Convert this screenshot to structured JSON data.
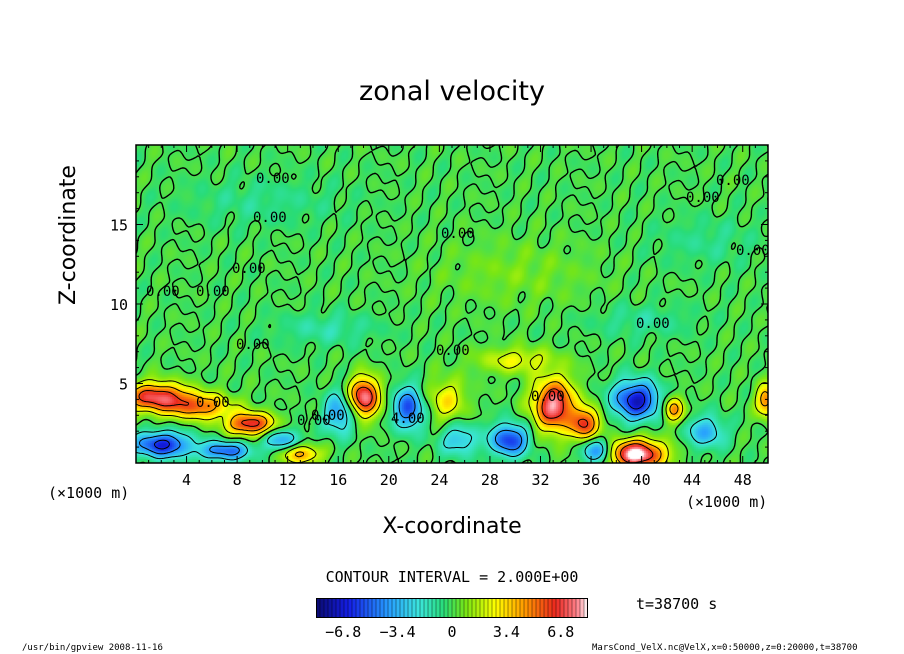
{
  "chart_data": {
    "type": "heatmap",
    "title": "zonal velocity",
    "xlabel": "X-coordinate",
    "ylabel": "Z-coordinate",
    "x_unit": "(×1000 m)",
    "y_unit": "(×1000 m)",
    "xlim": [
      0,
      50
    ],
    "ylim": [
      0,
      20
    ],
    "x_ticks": [
      4,
      8,
      12,
      16,
      20,
      24,
      28,
      32,
      36,
      40,
      44,
      48
    ],
    "y_ticks": [
      5,
      10,
      15
    ],
    "contour_interval_text": "CONTOUR INTERVAL = 2.000E+00",
    "contour_labels": [
      "0.00",
      "0.00",
      "0.00",
      "0.00",
      "0.00",
      "0.00",
      "0.00",
      "0.00",
      "0.00",
      "0.00",
      "0.00",
      "0.00",
      "0.00",
      "4.00",
      "0.00",
      "0.00",
      "0.00",
      "0.00"
    ],
    "colorbar": {
      "min": -8.5,
      "max": 8.5,
      "ticks": [
        "−6.8",
        "−3.4",
        "0",
        "3.4",
        "6.8"
      ],
      "tick_values": [
        -6.8,
        -3.4,
        0,
        3.4,
        6.8
      ]
    },
    "time_label": "t=38700 s",
    "blobs": [
      {
        "x": 1.5,
        "z": 4.2,
        "v": 7.0,
        "sx": 2.5,
        "sz": 0.9
      },
      {
        "x": 5.0,
        "z": 3.6,
        "v": 5.0,
        "sx": 2.5,
        "sz": 0.8
      },
      {
        "x": 9.0,
        "z": 2.5,
        "v": 7.0,
        "sx": 1.8,
        "sz": 0.7
      },
      {
        "x": 13.0,
        "z": 0.6,
        "v": 4.5,
        "sx": 1.5,
        "sz": 0.6
      },
      {
        "x": 18.0,
        "z": 4.2,
        "v": 8.0,
        "sx": 1.2,
        "sz": 1.2
      },
      {
        "x": 24.5,
        "z": 4.0,
        "v": 3.0,
        "sx": 1.5,
        "sz": 1.3
      },
      {
        "x": 33.0,
        "z": 3.7,
        "v": 8.0,
        "sx": 1.6,
        "sz": 1.6
      },
      {
        "x": 35.5,
        "z": 2.5,
        "v": 6.0,
        "sx": 1.2,
        "sz": 1.0
      },
      {
        "x": 39.5,
        "z": 0.6,
        "v": 9.0,
        "sx": 2.2,
        "sz": 0.9
      },
      {
        "x": 42.5,
        "z": 3.4,
        "v": 5.0,
        "sx": 0.8,
        "sz": 0.8
      },
      {
        "x": 49.8,
        "z": 4.0,
        "v": 5.0,
        "sx": 0.8,
        "sz": 1.0
      },
      {
        "x": 2.0,
        "z": 1.2,
        "v": -6.5,
        "sx": 2.2,
        "sz": 0.8
      },
      {
        "x": 7.0,
        "z": 0.8,
        "v": -5.0,
        "sx": 2.0,
        "sz": 0.6
      },
      {
        "x": 11.5,
        "z": 1.5,
        "v": -3.5,
        "sx": 1.5,
        "sz": 0.7
      },
      {
        "x": 16.0,
        "z": 3.2,
        "v": -4.0,
        "sx": 1.2,
        "sz": 1.3
      },
      {
        "x": 21.5,
        "z": 3.5,
        "v": -5.5,
        "sx": 1.2,
        "sz": 1.3
      },
      {
        "x": 25.5,
        "z": 1.5,
        "v": -3.0,
        "sx": 1.5,
        "sz": 1.0
      },
      {
        "x": 29.5,
        "z": 1.5,
        "v": -6.0,
        "sx": 1.5,
        "sz": 1.0
      },
      {
        "x": 36.5,
        "z": 0.8,
        "v": -5.0,
        "sx": 1.2,
        "sz": 0.8
      },
      {
        "x": 39.5,
        "z": 4.0,
        "v": -7.0,
        "sx": 1.8,
        "sz": 1.2
      },
      {
        "x": 45.0,
        "z": 2.0,
        "v": -3.5,
        "sx": 1.5,
        "sz": 1.0
      },
      {
        "x": 30.0,
        "z": 6.5,
        "v": 2.5,
        "sx": 3.0,
        "sz": 0.8
      },
      {
        "x": 15.0,
        "z": 8.5,
        "v": -1.2,
        "sx": 4.0,
        "sz": 1.0
      },
      {
        "x": 40.0,
        "z": 9.0,
        "v": -1.0,
        "sx": 4.0,
        "sz": 1.0
      },
      {
        "x": 10.0,
        "z": 16.5,
        "v": -0.8,
        "sx": 6.0,
        "sz": 1.5
      },
      {
        "x": 30.0,
        "z": 12.0,
        "v": 0.8,
        "sx": 6.0,
        "sz": 2.0
      },
      {
        "x": 45.0,
        "z": 14.0,
        "v": -0.8,
        "sx": 4.0,
        "sz": 1.5
      }
    ]
  },
  "footer": {
    "program": "/usr/bin/gpview   2008-11-16",
    "source": "MarsCond_VelX.nc@VelX,x=0:50000,z=0:20000,t=38700"
  }
}
